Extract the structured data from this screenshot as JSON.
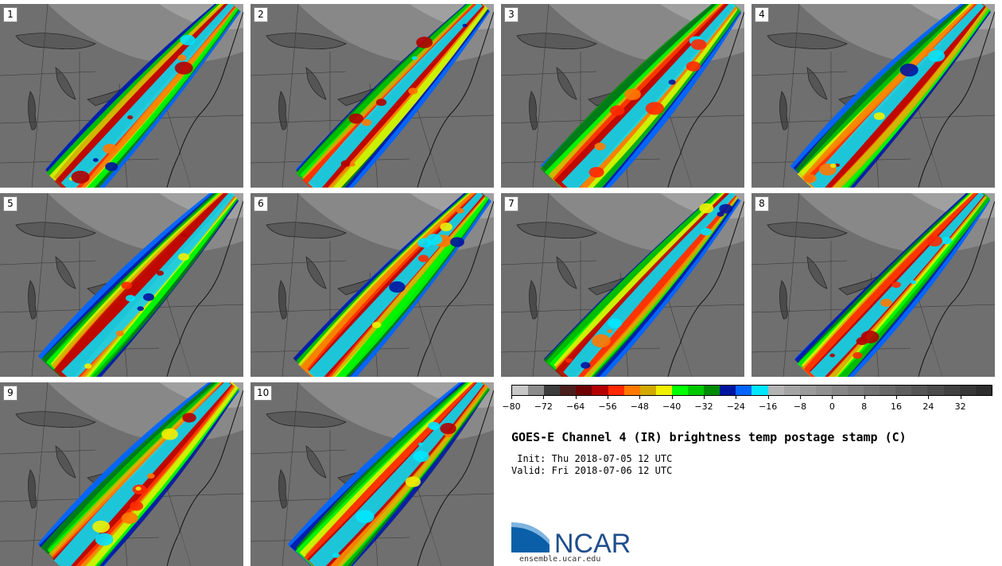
{
  "panels": [
    {
      "label": "1"
    },
    {
      "label": "2"
    },
    {
      "label": "3"
    },
    {
      "label": "4"
    },
    {
      "label": "5"
    },
    {
      "label": "6"
    },
    {
      "label": "7"
    },
    {
      "label": "8"
    },
    {
      "label": "9"
    },
    {
      "label": "10"
    }
  ],
  "colorbar": {
    "colors": [
      "#c8c8c8",
      "#8c8c8c",
      "#3c3c3c",
      "#4b1e1e",
      "#6e0000",
      "#b40000",
      "#ff2800",
      "#ff7800",
      "#d2aa00",
      "#f0f000",
      "#00ff00",
      "#00c800",
      "#008c00",
      "#0014a0",
      "#0064ff",
      "#00e6ff",
      "#b4b4b4",
      "#a5a5a5",
      "#9b9b9b",
      "#919191",
      "#878787",
      "#7d7d7d",
      "#737373",
      "#696969",
      "#5f5f5f",
      "#555555",
      "#4b4b4b",
      "#414141",
      "#373737",
      "#2d2d2d"
    ],
    "tick_labels": [
      "−80",
      "−72",
      "−64",
      "−56",
      "−48",
      "−40",
      "−32",
      "−24",
      "−16",
      "−8",
      "0",
      "8",
      "16",
      "24",
      "32"
    ]
  },
  "title": "GOES-E Channel 4 (IR) brightness temp postage stamp (C)",
  "init": " Init: Thu 2018-07-05 12 UTC",
  "valid": "Valid: Fri 2018-07-06 12 UTC",
  "logo": {
    "text": "NCAR",
    "url": "ensemble.ucar.edu",
    "color": "#1f4e8c"
  }
}
